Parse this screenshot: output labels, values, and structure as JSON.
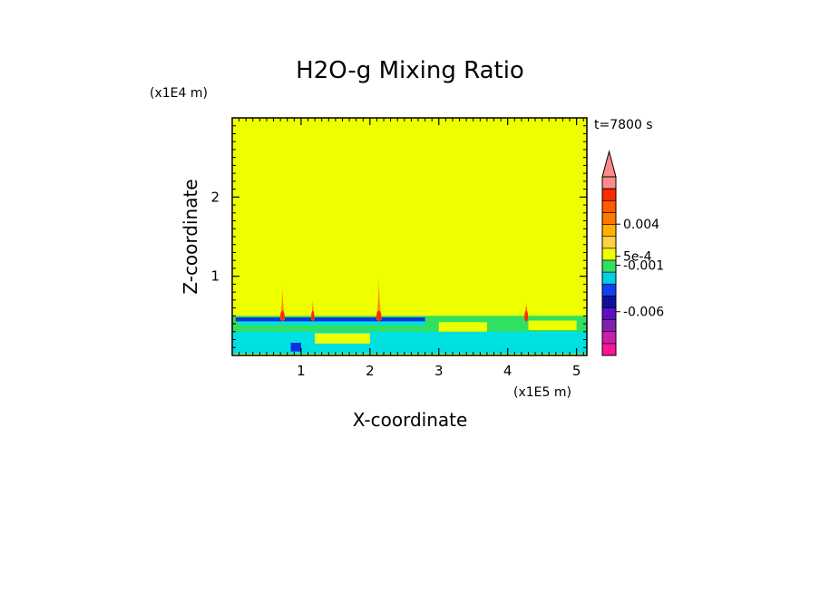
{
  "chart_data": {
    "type": "heatmap",
    "title": "H2O-g Mixing Ratio",
    "xlabel": "X-coordinate",
    "ylabel": "Z-coordinate",
    "x_multiplier": "(x1E5 m)",
    "y_multiplier": "(x1E4 m)",
    "time_label": "t=7800 s",
    "xlim": [
      0,
      5.15
    ],
    "ylim": [
      0,
      3.0
    ],
    "x_ticks": [
      1,
      2,
      3,
      4,
      5
    ],
    "x_tick_labels": [
      "1",
      "2",
      "3",
      "4",
      "5"
    ],
    "y_ticks": [
      1,
      2
    ],
    "y_tick_labels": [
      "1",
      "2"
    ],
    "background_level_color": "#eeff00",
    "field_regions": [
      {
        "x0": 0.0,
        "x1": 5.15,
        "z0": 0.02,
        "z1": 0.5,
        "color": "#30e060"
      },
      {
        "x0": 0.0,
        "x1": 5.15,
        "z0": 0.02,
        "z1": 0.3,
        "color": "#00e0e0"
      },
      {
        "x0": 0.05,
        "x1": 2.8,
        "z0": 0.43,
        "z1": 0.48,
        "color": "#1030e0"
      },
      {
        "x0": 0.1,
        "x1": 2.8,
        "z0": 0.38,
        "z1": 0.43,
        "color": "#00e0e0"
      },
      {
        "x0": 0.85,
        "x1": 1.0,
        "z0": 0.05,
        "z1": 0.16,
        "color": "#1030e0"
      },
      {
        "x0": 3.0,
        "x1": 3.7,
        "z0": 0.3,
        "z1": 0.42,
        "color": "#eeff00"
      },
      {
        "x0": 1.2,
        "x1": 2.0,
        "z0": 0.15,
        "z1": 0.28,
        "color": "#eeff00"
      },
      {
        "x0": 4.3,
        "x1": 5.0,
        "z0": 0.32,
        "z1": 0.44,
        "color": "#eeff00"
      }
    ],
    "plumes": [
      {
        "x": 0.73,
        "top": 0.88,
        "width": 0.07,
        "color": "#ff8c00"
      },
      {
        "x": 1.17,
        "top": 0.7,
        "width": 0.05,
        "color": "#ff8c00"
      },
      {
        "x": 2.13,
        "top": 1.05,
        "width": 0.08,
        "color": "#ff8c00"
      },
      {
        "x": 4.27,
        "top": 0.65,
        "width": 0.06,
        "color": "#ff8c00"
      }
    ],
    "colorbar": {
      "levels": [
        {
          "color": "#ff1493"
        },
        {
          "color": "#cc1fa8"
        },
        {
          "color": "#8020b0"
        },
        {
          "color": "#6010c0"
        },
        {
          "color": "#1010a0"
        },
        {
          "color": "#1040f0"
        },
        {
          "color": "#00d0e0"
        },
        {
          "color": "#30e060"
        },
        {
          "color": "#eeff00"
        },
        {
          "color": "#ffd040"
        },
        {
          "color": "#ffb000"
        },
        {
          "color": "#ff7a00"
        },
        {
          "color": "#ff5a00"
        },
        {
          "color": "#ff2a00"
        },
        {
          "color": "#ff8a8a"
        }
      ],
      "labels": [
        {
          "text": "0.004",
          "position": 0.735
        },
        {
          "text": "5e-4",
          "position": 0.555
        },
        {
          "text": "-0.001",
          "position": 0.505
        },
        {
          "text": "-0.006",
          "position": 0.245
        }
      ]
    }
  }
}
